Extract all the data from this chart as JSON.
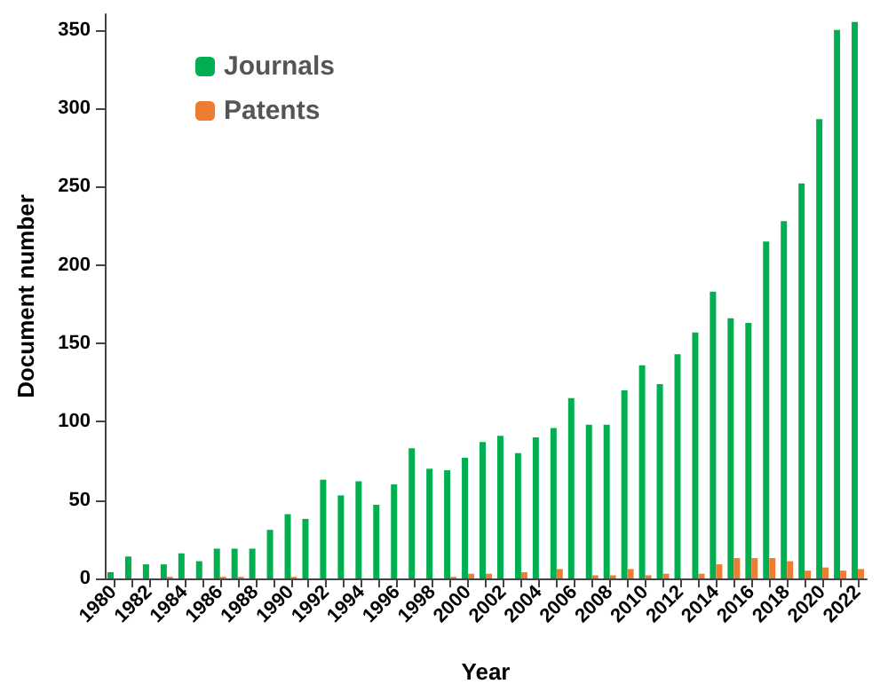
{
  "chart_data": {
    "type": "bar",
    "xlabel": "Year",
    "ylabel": "Document number",
    "categories": [
      "1980",
      null,
      "1982",
      null,
      "1984",
      null,
      "1986",
      null,
      "1988",
      null,
      "1990",
      null,
      "1992",
      null,
      "1994",
      null,
      "1996",
      null,
      "1998",
      null,
      "2000",
      null,
      "2002",
      null,
      "2004",
      null,
      "2006",
      null,
      "2008",
      null,
      "2010",
      null,
      "2012",
      null,
      "2014",
      null,
      "2016",
      null,
      "2018",
      null,
      "2020",
      null,
      "2022"
    ],
    "series": [
      {
        "name": "Journals",
        "color": "#00b050",
        "values": [
          4,
          14,
          9,
          9,
          16,
          11,
          19,
          19,
          19,
          31,
          41,
          38,
          63,
          53,
          62,
          47,
          60,
          83,
          70,
          69,
          77,
          87,
          91,
          80,
          90,
          96,
          115,
          98,
          98,
          120,
          136,
          124,
          143,
          157,
          183,
          166,
          163,
          215,
          228,
          252,
          293,
          350,
          355
        ]
      },
      {
        "name": "Patents",
        "color": "#ed7d31",
        "values": [
          0,
          0,
          0,
          1,
          0,
          0,
          1,
          1,
          0,
          0,
          1,
          0,
          0,
          0,
          0,
          0,
          0,
          0,
          0,
          1,
          3,
          3,
          0,
          4,
          0,
          6,
          0,
          2,
          2,
          6,
          2,
          3,
          0,
          3,
          9,
          13,
          13,
          13,
          11,
          5,
          7,
          5,
          6
        ]
      }
    ],
    "ylim": [
      0,
      360
    ],
    "yticks": [
      0,
      50,
      100,
      150,
      200,
      250,
      300,
      350
    ],
    "grid": false,
    "legend": "top left"
  }
}
